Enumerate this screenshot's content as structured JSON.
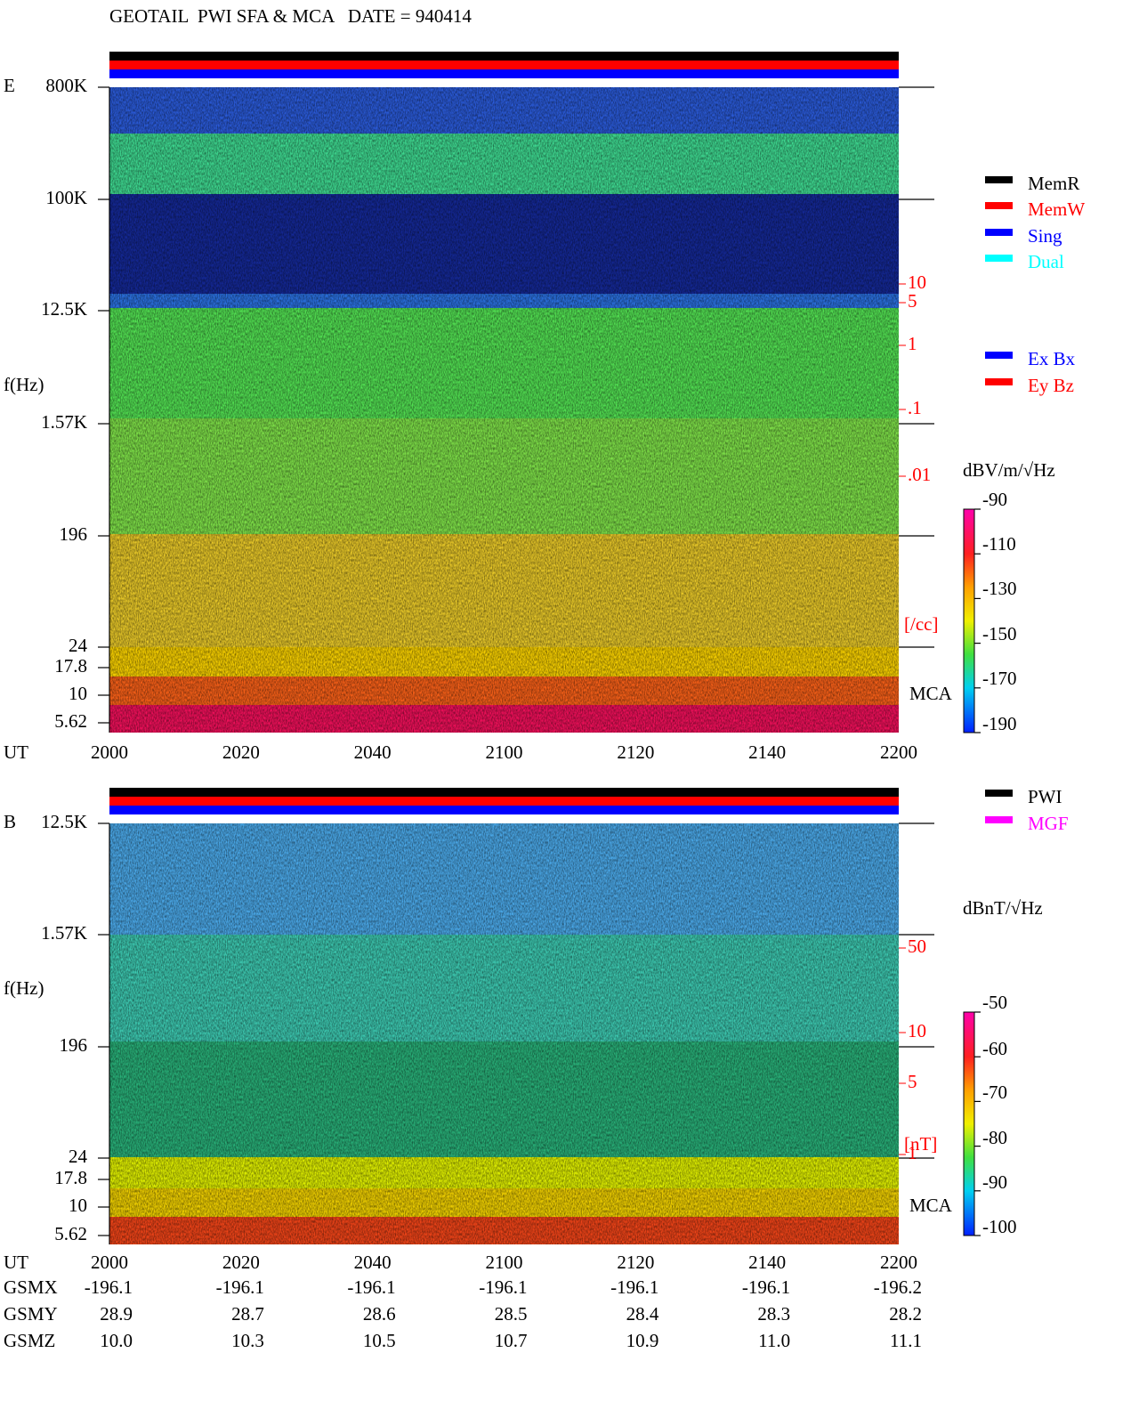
{
  "title": "GEOTAIL  PWI SFA & MCA   DATE = 940414",
  "panels": [
    {
      "label": "E",
      "y_axis_label": "f(Hz)",
      "x_axis_label": "UT",
      "yticks": [
        "800K",
        "100K",
        "12.5K",
        "1.57K",
        "196",
        "24",
        "17.8",
        "10",
        "5.62"
      ],
      "xticks": [
        "2000",
        "2020",
        "2040",
        "2100",
        "2120",
        "2140",
        "2200"
      ],
      "right_ticks": [
        "10",
        "5",
        "1",
        ".1",
        ".01"
      ],
      "right_unit": "[/cc]",
      "mca_label": "MCA",
      "colorbar": {
        "unit": "dBV/m/√Hz",
        "ticks": [
          "-90",
          "-110",
          "-130",
          "-150",
          "-170",
          "-190"
        ]
      },
      "legend": [
        {
          "name": "MemR",
          "color": "#000000"
        },
        {
          "name": "MemW",
          "color": "#ff0000"
        },
        {
          "name": "Sing",
          "color": "#0000ff"
        },
        {
          "name": "Dual",
          "color": "#00ffff"
        },
        {
          "name": "Ex Bx",
          "color": "#0000ff"
        },
        {
          "name": "Ey Bz",
          "color": "#ff0000"
        }
      ]
    },
    {
      "label": "B",
      "y_axis_label": "f(Hz)",
      "x_axis_label": "UT",
      "yticks": [
        "12.5K",
        "1.57K",
        "196",
        "24",
        "17.8",
        "10",
        "5.62"
      ],
      "xticks": [
        "2000",
        "2020",
        "2040",
        "2100",
        "2120",
        "2140",
        "2200"
      ],
      "right_ticks": [
        "50",
        "10",
        "5",
        "1"
      ],
      "right_unit": "[nT]",
      "mca_label": "MCA",
      "colorbar": {
        "unit": "dBnT/√Hz",
        "ticks": [
          "-50",
          "-60",
          "-70",
          "-80",
          "-90",
          "-100"
        ]
      },
      "legend": [
        {
          "name": "PWI",
          "color": "#000000"
        },
        {
          "name": "MGF",
          "color": "#ff00ff"
        }
      ]
    }
  ],
  "orbit": [
    {
      "name": "GSMX",
      "values": [
        "-196.1",
        "-196.1",
        "-196.1",
        "-196.1",
        "-196.1",
        "-196.1",
        "-196.2"
      ]
    },
    {
      "name": "GSMY",
      "values": [
        "28.9",
        "28.7",
        "28.6",
        "28.5",
        "28.4",
        "28.3",
        "28.2"
      ]
    },
    {
      "name": "GSMZ",
      "values": [
        "10.0",
        "10.3",
        "10.5",
        "10.7",
        "10.9",
        "11.0",
        "11.1"
      ]
    }
  ]
}
